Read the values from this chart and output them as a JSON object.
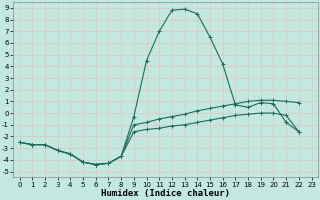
{
  "title": "",
  "xlabel": "Humidex (Indice chaleur)",
  "bg_color": "#c2e8e0",
  "grid_color": "#e8c0c0",
  "line_color": "#1a6b5a",
  "x_values": [
    0,
    1,
    2,
    3,
    4,
    5,
    6,
    7,
    8,
    9,
    10,
    11,
    12,
    13,
    14,
    15,
    16,
    17,
    18,
    19,
    20,
    21,
    22,
    23
  ],
  "curve_upper": [
    -2.5,
    -2.7,
    -2.7,
    -3.2,
    -3.5,
    -4.2,
    -4.4,
    -4.3,
    -3.7,
    -0.3,
    4.5,
    7.0,
    8.8,
    8.9,
    8.5,
    6.5,
    4.2,
    0.7,
    0.5,
    0.9,
    0.8,
    -0.8,
    -1.6,
    null
  ],
  "curve_mid": [
    -2.5,
    -2.7,
    -2.7,
    -3.2,
    -3.5,
    -4.2,
    -4.4,
    -4.3,
    -3.7,
    -1.0,
    -0.8,
    -0.5,
    -0.3,
    -0.1,
    0.2,
    0.4,
    0.6,
    0.8,
    1.0,
    1.1,
    1.1,
    1.0,
    0.9,
    null
  ],
  "curve_low": [
    -2.5,
    -2.7,
    -2.7,
    -3.2,
    -3.5,
    -4.2,
    -4.4,
    -4.3,
    -3.7,
    -1.6,
    -1.4,
    -1.3,
    -1.1,
    -1.0,
    -0.8,
    -0.6,
    -0.4,
    -0.2,
    -0.1,
    0.0,
    0.0,
    -0.2,
    -1.6,
    null
  ],
  "xlim": [
    -0.5,
    23.5
  ],
  "ylim": [
    -5.5,
    9.5
  ],
  "yticks": [
    -5,
    -4,
    -3,
    -2,
    -1,
    0,
    1,
    2,
    3,
    4,
    5,
    6,
    7,
    8,
    9
  ],
  "xticks": [
    0,
    1,
    2,
    3,
    4,
    5,
    6,
    7,
    8,
    9,
    10,
    11,
    12,
    13,
    14,
    15,
    16,
    17,
    18,
    19,
    20,
    21,
    22,
    23
  ],
  "tick_fontsize": 5.0,
  "xlabel_fontsize": 6.5,
  "marker_size": 2.5,
  "line_width": 0.8
}
